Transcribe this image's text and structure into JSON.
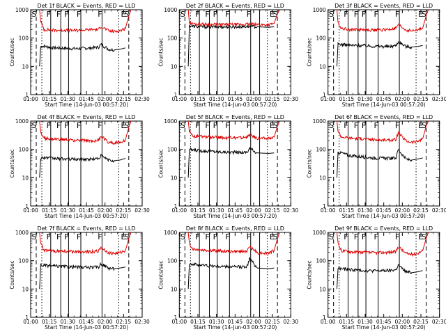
{
  "figure": {
    "xlabel": "Start Time (14-Jun-03 00:57:20)",
    "ylabel": "Counts/sec",
    "x_ticks": [
      "01:00",
      "01:15",
      "01:30",
      "01:45",
      "02:00",
      "02:15",
      "02:30"
    ],
    "y_ticks": [
      "1",
      "10",
      "100",
      "1000"
    ],
    "colors": {
      "events": "#000000",
      "lld": "#dd0000",
      "axes": "#000000",
      "bg": "#ffffff"
    }
  },
  "chart_data": [
    {
      "type": "line",
      "title": "Det 1f BLACK = Events, RED = LLD",
      "xlabel": "Start Time (14-Jun-03 00:57:20)",
      "ylabel": "Counts/sec",
      "xlim_min": [
        0,
        100
      ],
      "ylim": [
        1,
        1000
      ],
      "yscale": "log",
      "markers": [
        {
          "label": "S",
          "x": 5
        },
        {
          "label": "F",
          "x": 18
        },
        {
          "label": "F",
          "x": 27
        },
        {
          "label": "F",
          "x": 34
        },
        {
          "label": "F",
          "x": 45
        },
        {
          "label": "F",
          "x": 64
        },
        {
          "label": "E",
          "x": 85
        },
        {
          "label": "S",
          "x": 88
        }
      ],
      "dashed_lines": [
        5,
        88
      ],
      "dotted_lines": [
        10,
        79
      ],
      "solid_lines": [],
      "series": [
        {
          "name": "Events",
          "color": "#000000",
          "x": [
            8,
            9,
            12,
            20,
            30,
            40,
            55,
            61,
            63,
            70,
            75,
            80,
            85
          ],
          "y": [
            10,
            50,
            52,
            45,
            44,
            42,
            45,
            48,
            60,
            40,
            38,
            40,
            45
          ]
        },
        {
          "name": "LLD",
          "color": "#dd0000",
          "x": [
            8,
            9,
            12,
            20,
            30,
            40,
            55,
            61,
            63,
            70,
            75,
            80,
            85,
            88,
            90
          ],
          "y": [
            1000,
            400,
            200,
            190,
            190,
            185,
            200,
            200,
            260,
            180,
            170,
            180,
            220,
            600,
            1000
          ]
        }
      ]
    },
    {
      "type": "line",
      "title": "Det 2f BLACK = Events, RED = LLD",
      "xlabel": "Start Time (14-Jun-03 00:57:20)",
      "ylabel": "Counts/sec",
      "xlim_min": [
        0,
        100
      ],
      "ylim": [
        1,
        1000
      ],
      "yscale": "log",
      "markers": [
        {
          "label": "S",
          "x": 5
        },
        {
          "label": "F",
          "x": 18
        },
        {
          "label": "F",
          "x": 27
        },
        {
          "label": "F",
          "x": 34
        },
        {
          "label": "F",
          "x": 45
        },
        {
          "label": "F",
          "x": 64
        },
        {
          "label": "E",
          "x": 85
        },
        {
          "label": "S",
          "x": 88
        }
      ],
      "dashed_lines": [
        5,
        88
      ],
      "dotted_lines": [
        10,
        79
      ],
      "solid_lines": [
        18,
        27,
        34,
        45,
        64,
        72
      ],
      "series": [
        {
          "name": "Events",
          "color": "#000000",
          "x": [
            8,
            9,
            12,
            20,
            30,
            40,
            55,
            61,
            70,
            80,
            85
          ],
          "y": [
            10,
            280,
            260,
            250,
            250,
            250,
            250,
            260,
            250,
            240,
            250
          ]
        },
        {
          "name": "LLD",
          "color": "#dd0000",
          "x": [
            8,
            9,
            12,
            20,
            30,
            40,
            55,
            61,
            70,
            80,
            85,
            88,
            90
          ],
          "y": [
            1000,
            350,
            320,
            310,
            300,
            300,
            300,
            310,
            300,
            290,
            330,
            700,
            1000
          ]
        }
      ]
    },
    {
      "type": "line",
      "title": "Det 3f BLACK = Events, RED = LLD",
      "xlabel": "Start Time (14-Jun-03 00:57:20)",
      "ylabel": "Counts/sec",
      "xlim_min": [
        0,
        100
      ],
      "ylim": [
        1,
        1000
      ],
      "yscale": "log",
      "markers": [
        {
          "label": "S",
          "x": 5
        },
        {
          "label": "F",
          "x": 18
        },
        {
          "label": "F",
          "x": 27
        },
        {
          "label": "F",
          "x": 34
        },
        {
          "label": "F",
          "x": 45
        },
        {
          "label": "F",
          "x": 64
        },
        {
          "label": "E",
          "x": 85
        },
        {
          "label": "S",
          "x": 88
        }
      ],
      "dashed_lines": [
        5,
        88
      ],
      "dotted_lines": [
        10,
        79
      ],
      "solid_lines": [],
      "series": [
        {
          "name": "Events",
          "color": "#000000",
          "x": [
            8,
            9,
            12,
            20,
            30,
            40,
            55,
            61,
            63,
            70,
            75,
            80,
            85
          ],
          "y": [
            10,
            60,
            60,
            55,
            55,
            52,
            50,
            55,
            75,
            50,
            48,
            50,
            55
          ]
        },
        {
          "name": "LLD",
          "color": "#dd0000",
          "x": [
            8,
            9,
            12,
            20,
            30,
            40,
            55,
            61,
            63,
            70,
            75,
            80,
            85,
            88,
            90
          ],
          "y": [
            1000,
            350,
            220,
            200,
            200,
            190,
            200,
            220,
            300,
            190,
            180,
            190,
            230,
            600,
            1000
          ]
        }
      ]
    },
    {
      "type": "line",
      "title": "Det 4f BLACK = Events, RED = LLD",
      "xlabel": "Start Time (14-Jun-03 00:57:20)",
      "ylabel": "Counts/sec",
      "xlim_min": [
        0,
        100
      ],
      "ylim": [
        1,
        1000
      ],
      "yscale": "log",
      "markers": [
        {
          "label": "S",
          "x": 5
        },
        {
          "label": "F",
          "x": 18
        },
        {
          "label": "F",
          "x": 27
        },
        {
          "label": "F",
          "x": 34
        },
        {
          "label": "F",
          "x": 45
        },
        {
          "label": "F",
          "x": 64
        },
        {
          "label": "E",
          "x": 85
        },
        {
          "label": "S",
          "x": 88
        }
      ],
      "dashed_lines": [
        5,
        88
      ],
      "dotted_lines": [
        10,
        79
      ],
      "solid_lines": [],
      "series": [
        {
          "name": "Events",
          "color": "#000000",
          "x": [
            8,
            9,
            12,
            20,
            30,
            40,
            55,
            61,
            63,
            70,
            75,
            80,
            85
          ],
          "y": [
            10,
            50,
            52,
            48,
            46,
            45,
            45,
            48,
            60,
            42,
            40,
            42,
            48
          ]
        },
        {
          "name": "LLD",
          "color": "#dd0000",
          "x": [
            8,
            9,
            12,
            20,
            30,
            40,
            55,
            61,
            63,
            70,
            75,
            80,
            85,
            88,
            90
          ],
          "y": [
            1000,
            400,
            250,
            230,
            220,
            210,
            200,
            210,
            300,
            180,
            170,
            180,
            220,
            600,
            1000
          ]
        }
      ]
    },
    {
      "type": "line",
      "title": "Det 5f BLACK = Events, RED = LLD",
      "xlabel": "Start Time (14-Jun-03 00:57:20)",
      "ylabel": "Counts/sec",
      "xlim_min": [
        0,
        100
      ],
      "ylim": [
        1,
        1000
      ],
      "yscale": "log",
      "markers": [
        {
          "label": "S",
          "x": 5
        },
        {
          "label": "F",
          "x": 18
        },
        {
          "label": "F",
          "x": 27
        },
        {
          "label": "F",
          "x": 34
        },
        {
          "label": "F",
          "x": 45
        },
        {
          "label": "F",
          "x": 64
        },
        {
          "label": "E",
          "x": 85
        },
        {
          "label": "S",
          "x": 88
        }
      ],
      "dashed_lines": [
        5,
        88
      ],
      "dotted_lines": [
        10,
        79
      ],
      "solid_lines": [
        18,
        27,
        34,
        45,
        64,
        72
      ],
      "series": [
        {
          "name": "Events",
          "color": "#000000",
          "x": [
            8,
            9,
            12,
            20,
            30,
            40,
            55,
            61,
            63,
            70,
            80,
            85
          ],
          "y": [
            10,
            100,
            95,
            90,
            85,
            80,
            78,
            80,
            110,
            75,
            72,
            75
          ]
        },
        {
          "name": "LLD",
          "color": "#dd0000",
          "x": [
            8,
            9,
            12,
            20,
            30,
            40,
            55,
            61,
            63,
            70,
            80,
            85,
            88,
            90
          ],
          "y": [
            1000,
            450,
            300,
            280,
            270,
            260,
            260,
            270,
            330,
            250,
            240,
            270,
            650,
            1000
          ]
        }
      ]
    },
    {
      "type": "line",
      "title": "Det 6f BLACK = Events, RED = LLD",
      "xlabel": "Start Time (14-Jun-03 00:57:20)",
      "ylabel": "Counts/sec",
      "xlim_min": [
        0,
        100
      ],
      "ylim": [
        1,
        1000
      ],
      "yscale": "log",
      "markers": [
        {
          "label": "S",
          "x": 5
        },
        {
          "label": "F",
          "x": 18
        },
        {
          "label": "F",
          "x": 27
        },
        {
          "label": "F",
          "x": 34
        },
        {
          "label": "F",
          "x": 45
        },
        {
          "label": "F",
          "x": 64
        },
        {
          "label": "E",
          "x": 85
        },
        {
          "label": "S",
          "x": 88
        }
      ],
      "dashed_lines": [
        5,
        88
      ],
      "dotted_lines": [
        10,
        79
      ],
      "solid_lines": [],
      "series": [
        {
          "name": "Events",
          "color": "#000000",
          "x": [
            8,
            9,
            12,
            20,
            30,
            40,
            55,
            61,
            63,
            70,
            75,
            80,
            85
          ],
          "y": [
            10,
            80,
            75,
            60,
            55,
            50,
            48,
            50,
            100,
            45,
            42,
            45,
            50
          ]
        },
        {
          "name": "LLD",
          "color": "#dd0000",
          "x": [
            8,
            9,
            12,
            20,
            30,
            40,
            55,
            61,
            63,
            70,
            75,
            80,
            85,
            88,
            90
          ],
          "y": [
            1000,
            450,
            280,
            250,
            240,
            220,
            210,
            230,
            380,
            200,
            180,
            190,
            240,
            650,
            1000
          ]
        }
      ]
    },
    {
      "type": "line",
      "title": "Det 7f BLACK = Events, RED = LLD",
      "xlabel": "Start Time (14-Jun-03 00:57:20)",
      "ylabel": "Counts/sec",
      "xlim_min": [
        0,
        100
      ],
      "ylim": [
        1,
        1000
      ],
      "yscale": "log",
      "markers": [
        {
          "label": "S",
          "x": 5
        },
        {
          "label": "F",
          "x": 18
        },
        {
          "label": "F",
          "x": 27
        },
        {
          "label": "F",
          "x": 34
        },
        {
          "label": "F",
          "x": 45
        },
        {
          "label": "F",
          "x": 64
        },
        {
          "label": "E",
          "x": 85
        },
        {
          "label": "S",
          "x": 88
        }
      ],
      "dashed_lines": [
        5,
        88
      ],
      "dotted_lines": [
        10,
        79
      ],
      "solid_lines": [],
      "series": [
        {
          "name": "Events",
          "color": "#000000",
          "x": [
            8,
            9,
            12,
            20,
            30,
            40,
            55,
            61,
            63,
            70,
            75,
            80,
            85
          ],
          "y": [
            10,
            70,
            68,
            65,
            62,
            60,
            58,
            60,
            80,
            55,
            52,
            55,
            60
          ]
        },
        {
          "name": "LLD",
          "color": "#dd0000",
          "x": [
            8,
            9,
            12,
            20,
            30,
            40,
            55,
            61,
            63,
            70,
            75,
            80,
            85,
            88,
            90
          ],
          "y": [
            1000,
            400,
            230,
            220,
            215,
            210,
            210,
            220,
            300,
            190,
            180,
            190,
            230,
            600,
            1000
          ]
        }
      ]
    },
    {
      "type": "line",
      "title": "Det 8f BLACK = Events, RED = LLD",
      "xlabel": "Start Time (14-Jun-03 00:57:20)",
      "ylabel": "Counts/sec",
      "xlim_min": [
        0,
        100
      ],
      "ylim": [
        1,
        1000
      ],
      "yscale": "log",
      "markers": [
        {
          "label": "S",
          "x": 5
        },
        {
          "label": "F",
          "x": 18
        },
        {
          "label": "F",
          "x": 27
        },
        {
          "label": "F",
          "x": 34
        },
        {
          "label": "F",
          "x": 45
        },
        {
          "label": "F",
          "x": 64
        },
        {
          "label": "E",
          "x": 85
        },
        {
          "label": "S",
          "x": 88
        }
      ],
      "dashed_lines": [
        5,
        88
      ],
      "dotted_lines": [
        10,
        79
      ],
      "solid_lines": [
        18,
        27,
        34,
        45,
        64,
        72
      ],
      "series": [
        {
          "name": "Events",
          "color": "#000000",
          "x": [
            8,
            9,
            12,
            20,
            30,
            40,
            55,
            61,
            63,
            70,
            80,
            85
          ],
          "y": [
            10,
            80,
            75,
            70,
            65,
            62,
            60,
            65,
            120,
            55,
            52,
            55
          ]
        },
        {
          "name": "LLD",
          "color": "#dd0000",
          "x": [
            8,
            9,
            12,
            20,
            30,
            40,
            55,
            61,
            63,
            70,
            80,
            85,
            88,
            90
          ],
          "y": [
            1000,
            420,
            260,
            240,
            230,
            220,
            210,
            220,
            320,
            190,
            190,
            230,
            600,
            1000
          ]
        }
      ]
    },
    {
      "type": "line",
      "title": "Det 9f BLACK = Events, RED = LLD",
      "xlabel": "Start Time (14-Jun-03 00:57:20)",
      "ylabel": "Counts/sec",
      "xlim_min": [
        0,
        100
      ],
      "ylim": [
        1,
        1000
      ],
      "yscale": "log",
      "markers": [
        {
          "label": "S",
          "x": 5
        },
        {
          "label": "F",
          "x": 18
        },
        {
          "label": "F",
          "x": 27
        },
        {
          "label": "F",
          "x": 34
        },
        {
          "label": "F",
          "x": 45
        },
        {
          "label": "F",
          "x": 64
        },
        {
          "label": "E",
          "x": 85
        },
        {
          "label": "S",
          "x": 88
        }
      ],
      "dashed_lines": [
        5,
        88
      ],
      "dotted_lines": [
        10,
        79
      ],
      "solid_lines": [],
      "series": [
        {
          "name": "Events",
          "color": "#000000",
          "x": [
            8,
            9,
            12,
            20,
            30,
            40,
            55,
            61,
            63,
            70,
            75,
            80,
            85
          ],
          "y": [
            10,
            55,
            52,
            48,
            46,
            44,
            45,
            48,
            70,
            40,
            38,
            40,
            45
          ]
        },
        {
          "name": "LLD",
          "color": "#dd0000",
          "x": [
            8,
            9,
            12,
            20,
            30,
            40,
            55,
            61,
            63,
            70,
            75,
            80,
            85,
            88,
            90
          ],
          "y": [
            1000,
            400,
            230,
            210,
            200,
            190,
            200,
            210,
            320,
            180,
            170,
            180,
            230,
            600,
            1000
          ]
        }
      ]
    }
  ]
}
